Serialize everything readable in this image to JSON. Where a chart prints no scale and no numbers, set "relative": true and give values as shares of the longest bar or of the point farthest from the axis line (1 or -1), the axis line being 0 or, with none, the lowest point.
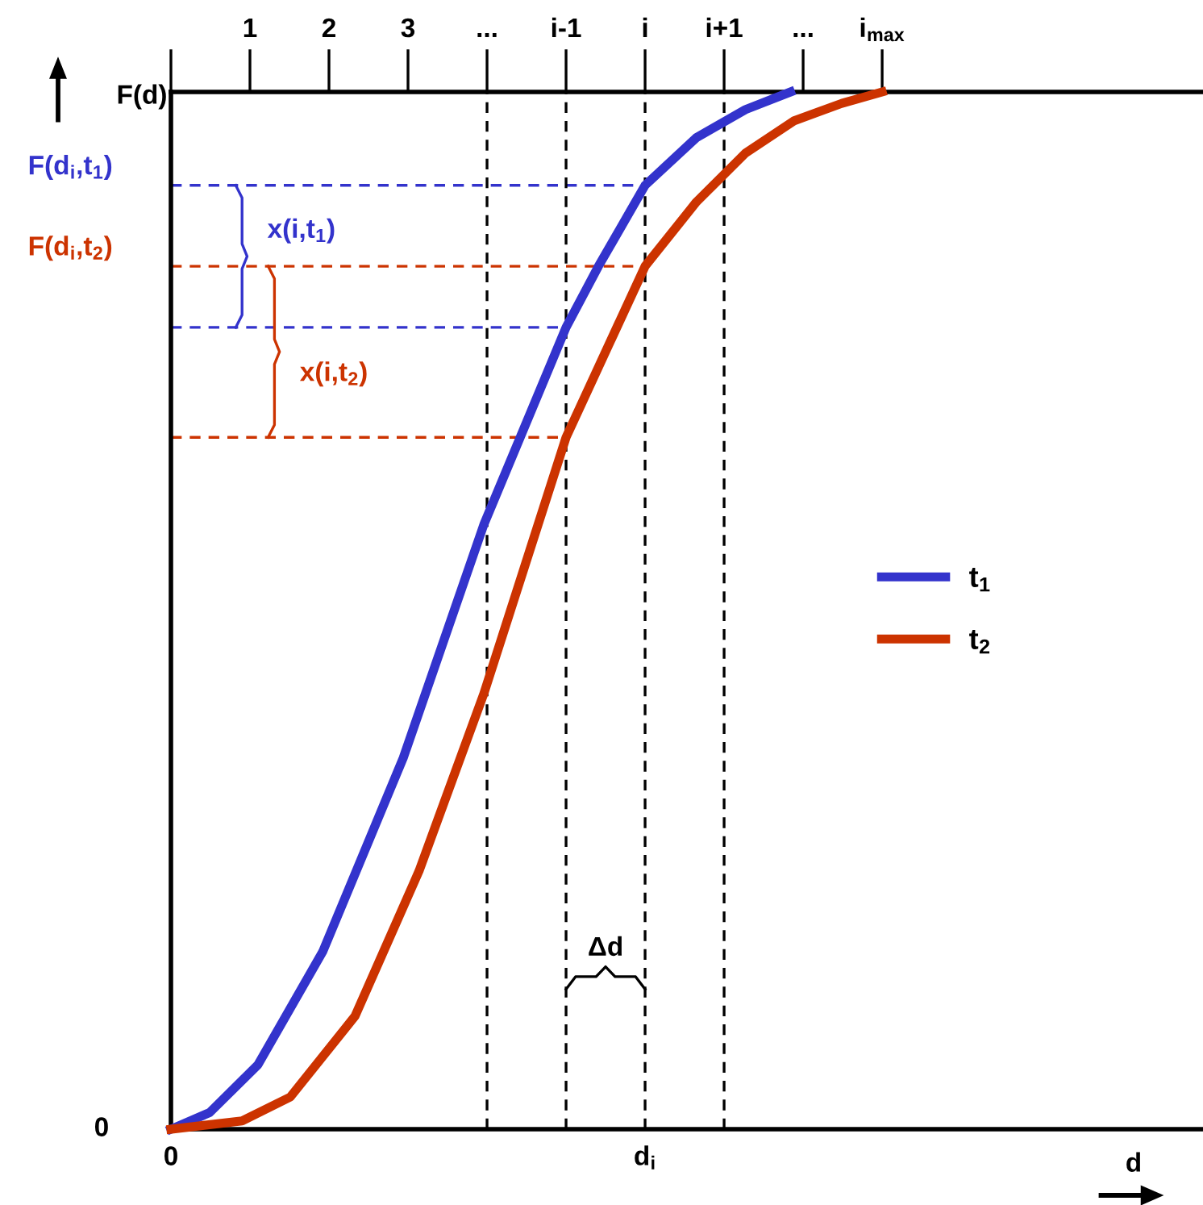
{
  "chart_data": {
    "type": "line",
    "relative": true,
    "ylabel": "F(d)",
    "xlabel": "d",
    "xlim": [
      0,
      13.06
    ],
    "xticks": [
      {
        "value": 0,
        "label": null
      },
      1,
      2,
      3,
      {
        "value": 4,
        "label": "..."
      },
      {
        "value": 5,
        "label": "i-1"
      },
      {
        "value": 6,
        "label": "i"
      },
      {
        "value": 7,
        "label": "i+1"
      },
      {
        "value": 8,
        "label": "..."
      },
      {
        "value": 9,
        "label": "i$_{max}$"
      }
    ],
    "series": [
      {
        "name": "t$_{1}$",
        "color": "#3333cc",
        "x": [
          0,
          0.49,
          1.1,
          1.92,
          2.94,
          3.96,
          5.0,
          5.41,
          6.0,
          6.65,
          7.27,
          7.84
        ],
        "values": [
          0,
          0.016,
          0.062,
          0.171,
          0.358,
          0.583,
          0.773,
          0.832,
          0.91,
          0.956,
          0.983,
          1.0
        ]
      },
      {
        "name": "t$_{2}$",
        "color": "#cc3300",
        "x": [
          0,
          0.9,
          1.51,
          2.33,
          3.14,
          3.96,
          5.0,
          6.0,
          6.65,
          7.27,
          7.88,
          8.49,
          9.0
        ],
        "values": [
          0,
          0.008,
          0.031,
          0.109,
          0.249,
          0.42,
          0.667,
          0.832,
          0.894,
          0.941,
          0.972,
          0.989,
          1.0
        ]
      }
    ],
    "ref_lines": [
      {
        "axis": "y",
        "value": 0.91,
        "label": "F(d$_{i}$,t$_{1}$)",
        "color": "#3333cc",
        "line_style": "dashed"
      },
      {
        "axis": "y",
        "value": 0.832,
        "label": "F(d$_{i}$,t$_{2}$)",
        "color": "#cc3300",
        "line_style": "dashed"
      },
      {
        "axis": "y",
        "value": 0.773,
        "color": "#3333cc",
        "line_style": "dashed"
      },
      {
        "axis": "y",
        "value": 0.667,
        "color": "#cc3300",
        "line_style": "dashed"
      },
      {
        "axis": "x",
        "value": 4,
        "color": "#000000",
        "line_style": "dashed"
      },
      {
        "axis": "x",
        "value": 5,
        "color": "#000000",
        "line_style": "dashed"
      },
      {
        "axis": "x",
        "value": 6,
        "color": "#000000",
        "line_style": "dashed"
      },
      {
        "axis": "x",
        "value": 7,
        "color": "#000000",
        "line_style": "dashed"
      }
    ],
    "annotations": [
      "x(i,t$_{1}$)",
      "x(i,t$_{2}$)",
      "Δd",
      "0",
      "0",
      "d$_{i}$"
    ],
    "legend": "right",
    "grid": false,
    "marker": "none",
    "line_style": "solid"
  }
}
